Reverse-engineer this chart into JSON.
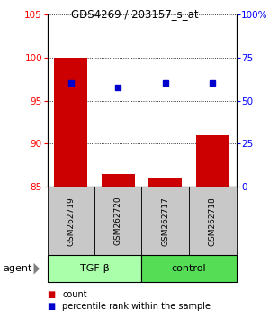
{
  "title": "GDS4269 / 203157_s_at",
  "samples": [
    "GSM262719",
    "GSM262720",
    "GSM262717",
    "GSM262718"
  ],
  "bar_values": [
    100.0,
    86.5,
    86.0,
    91.0
  ],
  "blue_values": [
    97.0,
    96.5,
    97.0,
    97.0
  ],
  "bar_color": "#cc0000",
  "blue_color": "#0000cc",
  "ylim_left": [
    85,
    105
  ],
  "ylim_right": [
    0,
    100
  ],
  "yticks_left": [
    85,
    90,
    95,
    100,
    105
  ],
  "yticks_right": [
    0,
    25,
    50,
    75,
    100
  ],
  "ytick_labels_right": [
    "0",
    "25",
    "50",
    "75",
    "100%"
  ],
  "groups": [
    {
      "label": "TGF-β",
      "indices": [
        0,
        1
      ],
      "color": "#aaffaa"
    },
    {
      "label": "control",
      "indices": [
        2,
        3
      ],
      "color": "#55dd55"
    }
  ],
  "group_label": "agent",
  "legend_count_label": "count",
  "legend_pct_label": "percentile rank within the sample",
  "bar_width": 0.7,
  "sample_box_color": "#c8c8c8"
}
